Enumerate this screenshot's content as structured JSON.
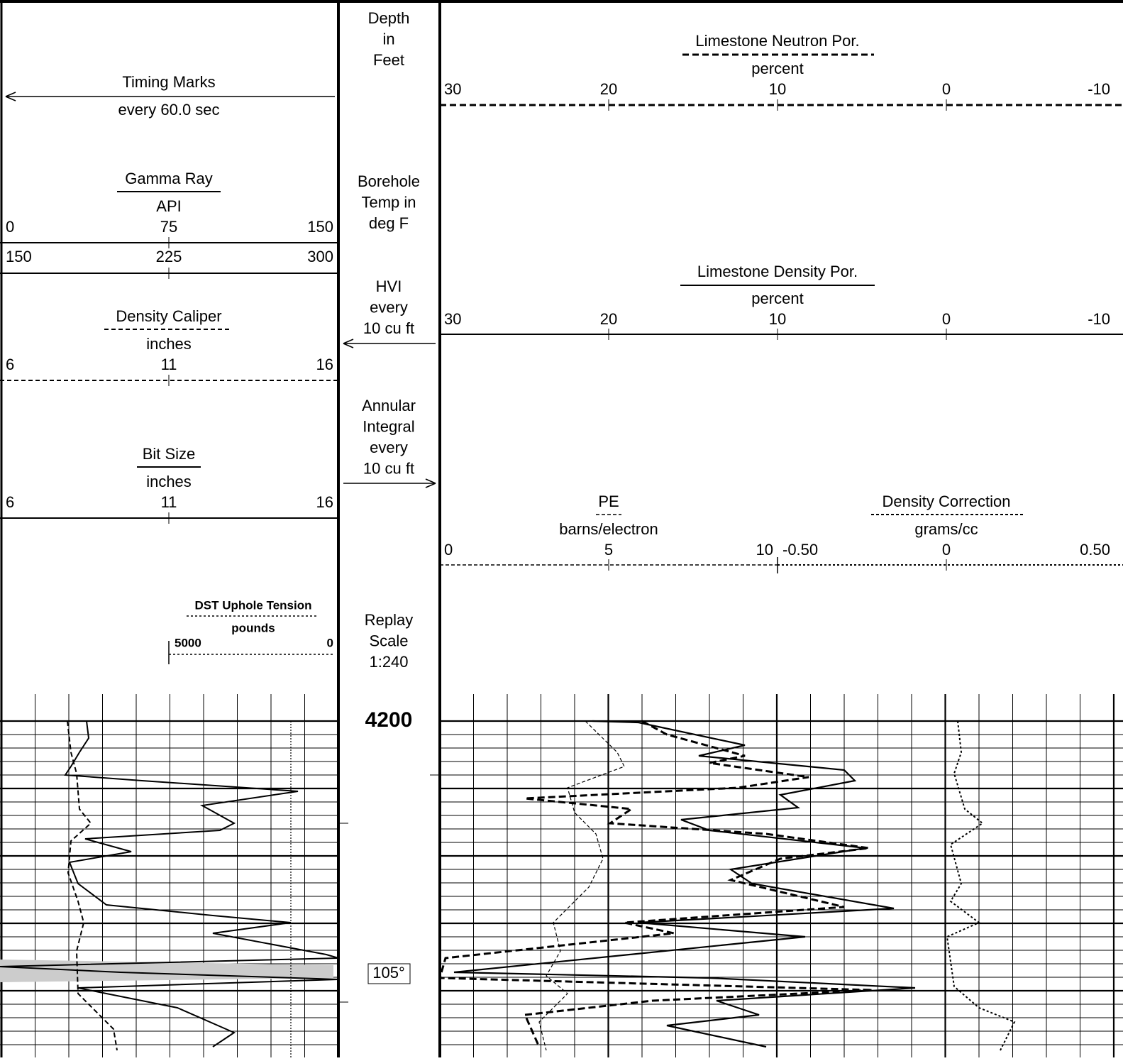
{
  "left_track": {
    "timing_marks": {
      "title": "Timing Marks",
      "unit": "every 60.0 sec"
    },
    "gamma_ray": {
      "title": "Gamma Ray",
      "unit": "API",
      "scale": [
        "0",
        "75",
        "150"
      ],
      "scale2": [
        "150",
        "225",
        "300"
      ]
    },
    "density_caliper": {
      "title": "Density Caliper",
      "unit": "inches",
      "scale": [
        "6",
        "11",
        "16"
      ]
    },
    "bit_size": {
      "title": "Bit Size",
      "unit": "inches",
      "scale": [
        "6",
        "11",
        "16"
      ]
    },
    "dst_uphole_tension": {
      "title": "DST Uphole Tension",
      "unit": "pounds",
      "scale": [
        "5000",
        "0"
      ]
    }
  },
  "depth_track": {
    "depth": [
      "Depth",
      "in",
      "Feet"
    ],
    "borehole_temp": [
      "Borehole",
      "Temp in",
      "deg F"
    ],
    "hvi": [
      "HVI",
      "every",
      "10 cu ft"
    ],
    "annular_integral": [
      "Annular",
      "Integral",
      "every",
      "10 cu ft"
    ],
    "replay_scale": [
      "Replay",
      "Scale",
      "1:240"
    ],
    "depth_mark": "4200",
    "temperature": "105°"
  },
  "right_track": {
    "neutron_porosity": {
      "title": "Limestone Neutron Por.",
      "unit": "percent",
      "scale": [
        "30",
        "20",
        "10",
        "0",
        "-10"
      ]
    },
    "density_porosity": {
      "title": "Limestone Density Por.",
      "unit": "percent",
      "scale": [
        "30",
        "20",
        "10",
        "0",
        "-10"
      ]
    },
    "pe": {
      "title": "PE",
      "unit": "barns/electron",
      "scale": [
        "0",
        "5",
        "10"
      ]
    },
    "density_correction": {
      "title": "Density Correction",
      "unit": "grams/cc",
      "scale": [
        "-0.50",
        "0",
        "0.50"
      ]
    }
  }
}
